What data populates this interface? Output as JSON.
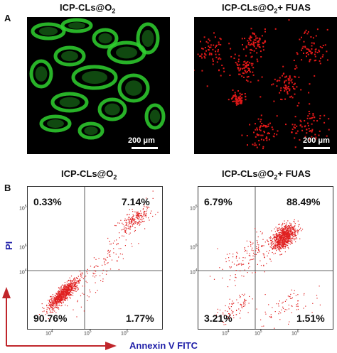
{
  "panel_a": {
    "letter": "A",
    "left_title": "ICP-CLs@O",
    "left_title_sub": "2",
    "right_title": "ICP-CLs@O",
    "right_title_sub": "2",
    "right_title_suffix": "+ FUAS",
    "scale_label_left": "200 μm",
    "scale_label_right": "200 μm",
    "colors": {
      "left_stain": "#2fd12f",
      "right_stain": "#e01818",
      "background": "#000000"
    }
  },
  "panel_b": {
    "letter": "B",
    "left_title": "ICP-CLs@O",
    "left_title_sub": "2",
    "right_title": "ICP-CLs@O",
    "right_title_sub": "2",
    "right_title_suffix": "+ FUAS",
    "y_axis_label": "PI",
    "x_axis_label": "Annexin V FITC",
    "tick_base": "10",
    "left_quadrants": {
      "ul": "0.33%",
      "ur": "7.14%",
      "ll": "90.76%",
      "lr": "1.77%"
    },
    "right_quadrants": {
      "ul": "6.79%",
      "ur": "88.49%",
      "ll": "3.21%",
      "lr": "1.51%"
    },
    "colors": {
      "dots": "#e02020",
      "axis_label": "#1f1fa8",
      "arrow": "#c0262b"
    }
  }
}
